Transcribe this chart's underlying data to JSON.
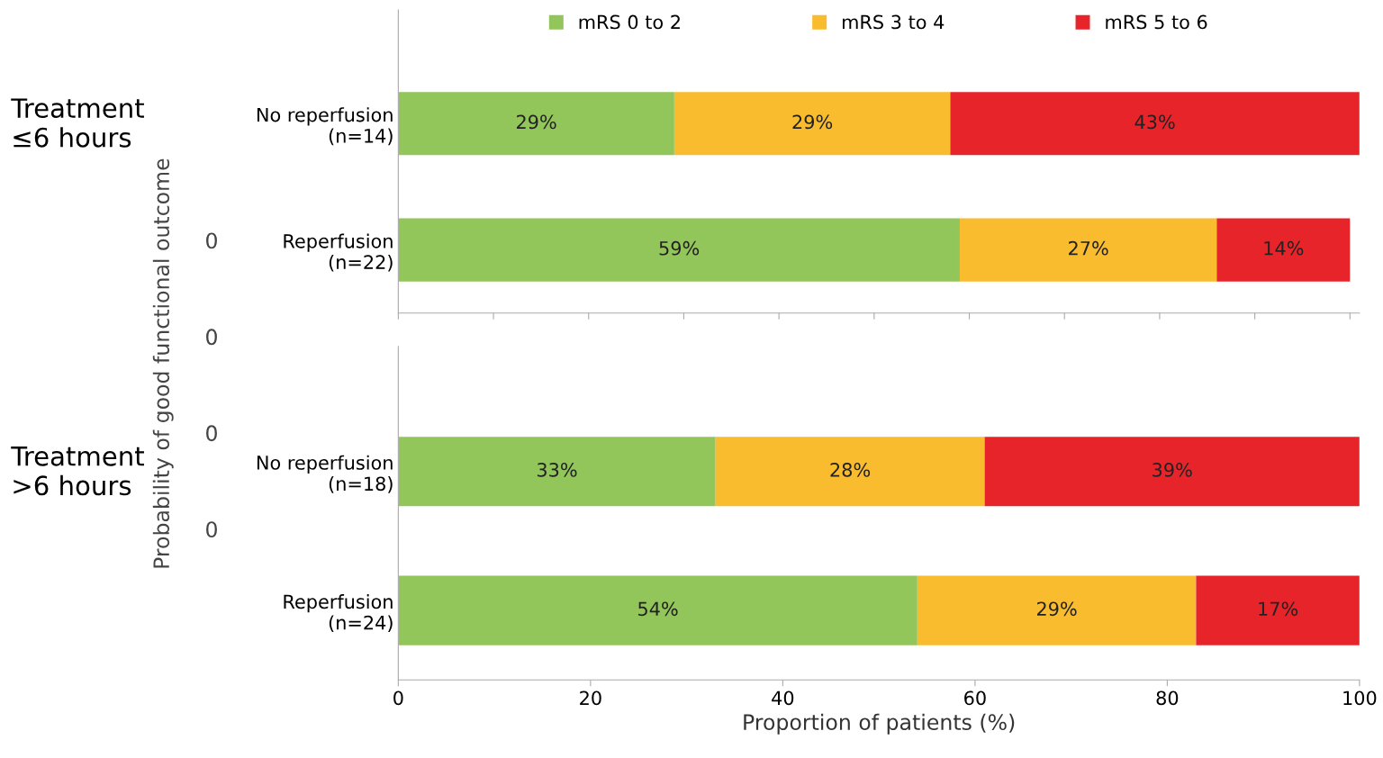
{
  "chart_data": [
    {
      "type": "bar",
      "orientation": "horizontal",
      "stacked": true,
      "title": "Treatment ≤6 hours",
      "categories": [
        "No reperfusion\n(n=14)",
        "Reperfusion\n(n=22)"
      ],
      "series": [
        {
          "name": "mRS 0 to 2",
          "color": "#92c55a",
          "values": [
            29,
            59
          ],
          "value_labels": [
            "29%",
            "59%"
          ]
        },
        {
          "name": "mRS 3 to 4",
          "color": "#f9bc2e",
          "values": [
            29,
            27
          ],
          "value_labels": [
            "29%",
            "27%"
          ]
        },
        {
          "name": "mRS 5 to 6",
          "color": "#e8242b",
          "values": [
            43,
            14
          ],
          "value_labels": [
            "43%",
            "14%"
          ]
        }
      ],
      "xlim": [
        0,
        101
      ],
      "xticks": [
        {
          "value": 0,
          "label": null
        },
        {
          "value": 10,
          "label": null
        },
        {
          "value": 20,
          "label": null
        },
        {
          "value": 30,
          "label": null
        },
        {
          "value": 40,
          "label": null
        },
        {
          "value": 50,
          "label": null
        },
        {
          "value": 60,
          "label": null
        },
        {
          "value": 70,
          "label": null
        },
        {
          "value": 80,
          "label": null
        },
        {
          "value": 90,
          "label": null
        },
        {
          "value": 100,
          "label": null
        }
      ],
      "tick_labels": "y",
      "legend": "top",
      "grid": false,
      "annotations": [
        "Probability of good functional outcome",
        "0",
        "0",
        "0",
        "0"
      ]
    },
    {
      "type": "bar",
      "orientation": "horizontal",
      "stacked": true,
      "title": "Treatment >6 hours",
      "categories": [
        "No reperfusion\n(n=18)",
        "Reperfusion\n(n=24)"
      ],
      "series": [
        {
          "color": "#92c55a",
          "values": [
            33,
            54
          ],
          "value_labels": [
            "33%",
            "54%"
          ]
        },
        {
          "color": "#f9bc2e",
          "values": [
            28,
            29
          ],
          "value_labels": [
            "28%",
            "29%"
          ]
        },
        {
          "color": "#e8242b",
          "values": [
            39,
            17
          ],
          "value_labels": [
            "39%",
            "17%"
          ]
        }
      ],
      "xlim": [
        0,
        100
      ],
      "xticks": [
        0,
        20,
        40,
        60,
        80,
        100
      ],
      "xlabel": "Proportion of patients (%)",
      "grid": false
    }
  ]
}
